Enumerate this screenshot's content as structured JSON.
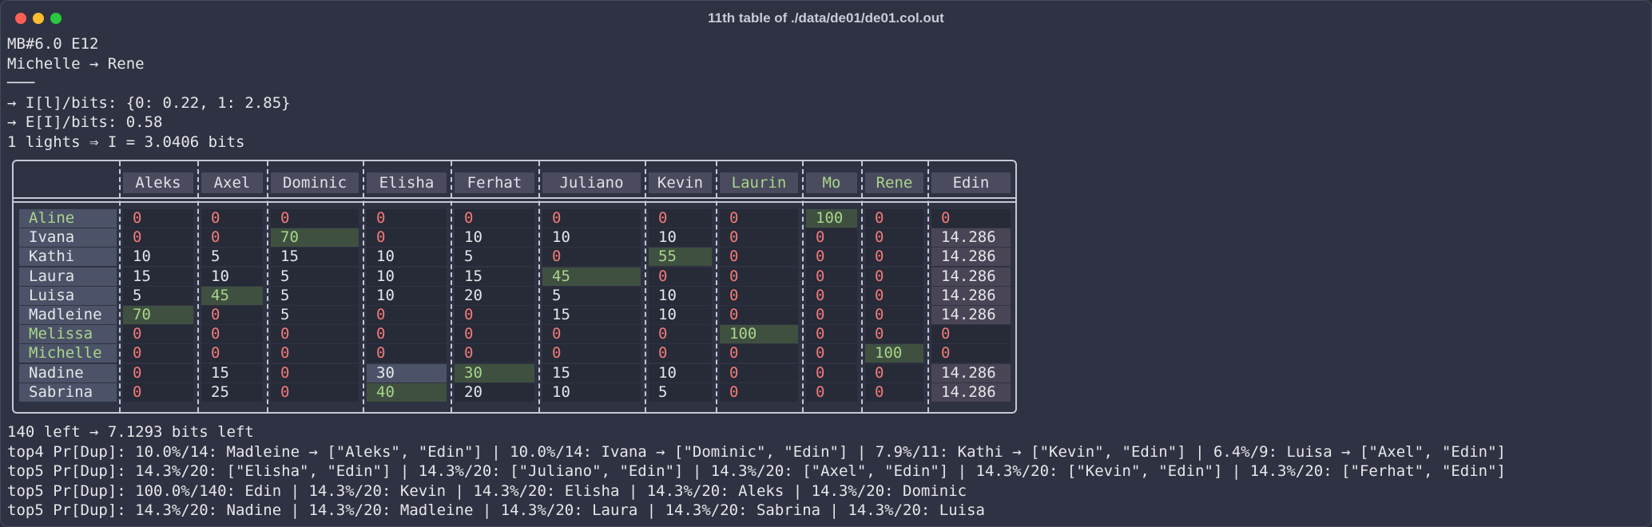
{
  "window": {
    "title": "11th table of ./data/de01/de01.col.out"
  },
  "header_lines": [
    "MB#6.0 E12",
    "Michelle → Rene",
    "───",
    "→ I[l]/bits: {0: 0.22, 1: 2.85}",
    "→ E[I]/bits: 0.58",
    "1 lights ⇒ I = 3.0406 bits"
  ],
  "table": {
    "columns": [
      "Aleks",
      "Axel",
      "Dominic",
      "Elisha",
      "Ferhat",
      "Juliano",
      "Kevin",
      "Laurin",
      "Mo",
      "Rene",
      "Edin"
    ],
    "green_columns": [
      "Laurin",
      "Mo",
      "Rene"
    ],
    "rows": [
      {
        "name": "Aline",
        "green": true,
        "values": [
          "0",
          "0",
          "0",
          "0",
          "0",
          "0",
          "0",
          "0",
          "100",
          "0",
          "0"
        ]
      },
      {
        "name": "Ivana",
        "green": false,
        "values": [
          "0",
          "0",
          "70",
          "0",
          "10",
          "10",
          "10",
          "0",
          "0",
          "0",
          "14.286"
        ]
      },
      {
        "name": "Kathi",
        "green": false,
        "values": [
          "10",
          "5",
          "15",
          "10",
          "5",
          "0",
          "55",
          "0",
          "0",
          "0",
          "14.286"
        ]
      },
      {
        "name": "Laura",
        "green": false,
        "values": [
          "15",
          "10",
          "5",
          "10",
          "15",
          "45",
          "0",
          "0",
          "0",
          "0",
          "14.286"
        ]
      },
      {
        "name": "Luisa",
        "green": false,
        "values": [
          "5",
          "45",
          "5",
          "10",
          "20",
          "5",
          "10",
          "0",
          "0",
          "0",
          "14.286"
        ]
      },
      {
        "name": "Madleine",
        "green": false,
        "values": [
          "70",
          "0",
          "5",
          "0",
          "0",
          "15",
          "10",
          "0",
          "0",
          "0",
          "14.286"
        ]
      },
      {
        "name": "Melissa",
        "green": true,
        "values": [
          "0",
          "0",
          "0",
          "0",
          "0",
          "0",
          "0",
          "100",
          "0",
          "0",
          "0"
        ]
      },
      {
        "name": "Michelle",
        "green": true,
        "values": [
          "0",
          "0",
          "0",
          "0",
          "0",
          "0",
          "0",
          "0",
          "0",
          "100",
          "0"
        ]
      },
      {
        "name": "Nadine",
        "green": false,
        "values": [
          "0",
          "15",
          "0",
          "30",
          "30",
          "15",
          "10",
          "0",
          "0",
          "0",
          "14.286"
        ]
      },
      {
        "name": "Sabrina",
        "green": false,
        "values": [
          "0",
          "25",
          "0",
          "40",
          "20",
          "10",
          "5",
          "0",
          "0",
          "0",
          "14.286"
        ]
      }
    ]
  },
  "footer_lines": [
    "140 left → 7.1293 bits left",
    "top4 Pr[Dup]: 10.0%/14: Madleine → [\"Aleks\", \"Edin\"] | 10.0%/14: Ivana → [\"Dominic\", \"Edin\"] | 7.9%/11: Kathi → [\"Kevin\", \"Edin\"] | 6.4%/9: Luisa → [\"Axel\", \"Edin\"]",
    "top5 Pr[Dup]: 14.3%/20: [\"Elisha\", \"Edin\"] | 14.3%/20: [\"Juliano\", \"Edin\"] | 14.3%/20: [\"Axel\", \"Edin\"] | 14.3%/20: [\"Kevin\", \"Edin\"] | 14.3%/20: [\"Ferhat\", \"Edin\"]",
    "top5 Pr[Dup]: 100.0%/140: Edin | 14.3%/20: Kevin | 14.3%/20: Elisha | 14.3%/20: Aleks | 14.3%/20: Dominic",
    "top5 Pr[Dup]: 14.3%/20: Nadine | 14.3%/20: Madleine | 14.3%/20: Laura | 14.3%/20: Sabrina | 14.3%/20: Luisa"
  ]
}
